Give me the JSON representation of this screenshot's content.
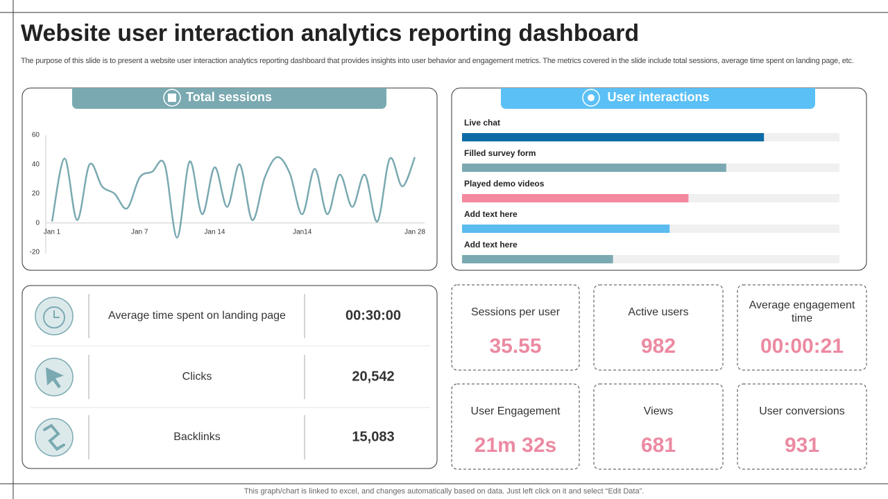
{
  "header": {
    "title": "Website user interaction analytics reporting dashboard",
    "description": "The purpose of this slide is to present a website user interaction analytics reporting dashboard that provides insights into user behavior and engagement metrics. The metrics covered in the slide include total sessions, average time spent on landing page, etc."
  },
  "chart_data": [
    {
      "type": "line",
      "title": "Total sessions",
      "categories": [
        "Jan 1",
        null,
        null,
        null,
        null,
        null,
        null,
        "Jan 7",
        null,
        null,
        null,
        null,
        null,
        "Jan 14",
        null,
        null,
        null,
        null,
        null,
        null,
        "Jan14",
        null,
        null,
        null,
        null,
        null,
        null,
        null,
        null,
        "Jan 28"
      ],
      "series": [
        {
          "color": "#7aa9b1",
          "values": [
            1,
            44,
            2,
            40,
            25,
            20,
            10,
            31,
            35,
            40,
            -10,
            42,
            6,
            38,
            11,
            40,
            2,
            31,
            45,
            34,
            6,
            37,
            6,
            33,
            11,
            33,
            1,
            44,
            25,
            45
          ]
        }
      ],
      "ylim": [
        -20,
        60
      ],
      "yticks": [
        60,
        40,
        20,
        0,
        -20
      ]
    },
    {
      "type": "hbar",
      "title": "User interactions",
      "categories": [
        "Live chat",
        "Filled  survey form",
        "Played demo videos",
        "Add text here",
        "Add text here"
      ],
      "values": [
        80,
        70,
        60,
        55,
        40
      ],
      "colors": [
        "#0e6ba6",
        "#7aa9b1",
        "#f4889e",
        "#5bbcef",
        "#7aa9b1"
      ],
      "xlim": [
        0,
        100
      ]
    }
  ],
  "metrics": [
    {
      "label": "Average time spent on landing page",
      "value": "00:30:00"
    },
    {
      "label": "Clicks",
      "value": "20,542"
    },
    {
      "label": "Backlinks",
      "value": "15,083"
    }
  ],
  "kpis": [
    {
      "label": "Sessions per user",
      "value": "35.55"
    },
    {
      "label": "Active users",
      "value": "982"
    },
    {
      "label": "Average engagement time",
      "value": "00:00:21"
    },
    {
      "label": "User Engagement",
      "value": "21m 32s"
    },
    {
      "label": "Views",
      "value": "681"
    },
    {
      "label": "User conversions",
      "value": "931"
    }
  ],
  "footer": "This graph/chart is linked to excel,  and changes automatically based on data. Just left click on it and select “Edit Data”."
}
